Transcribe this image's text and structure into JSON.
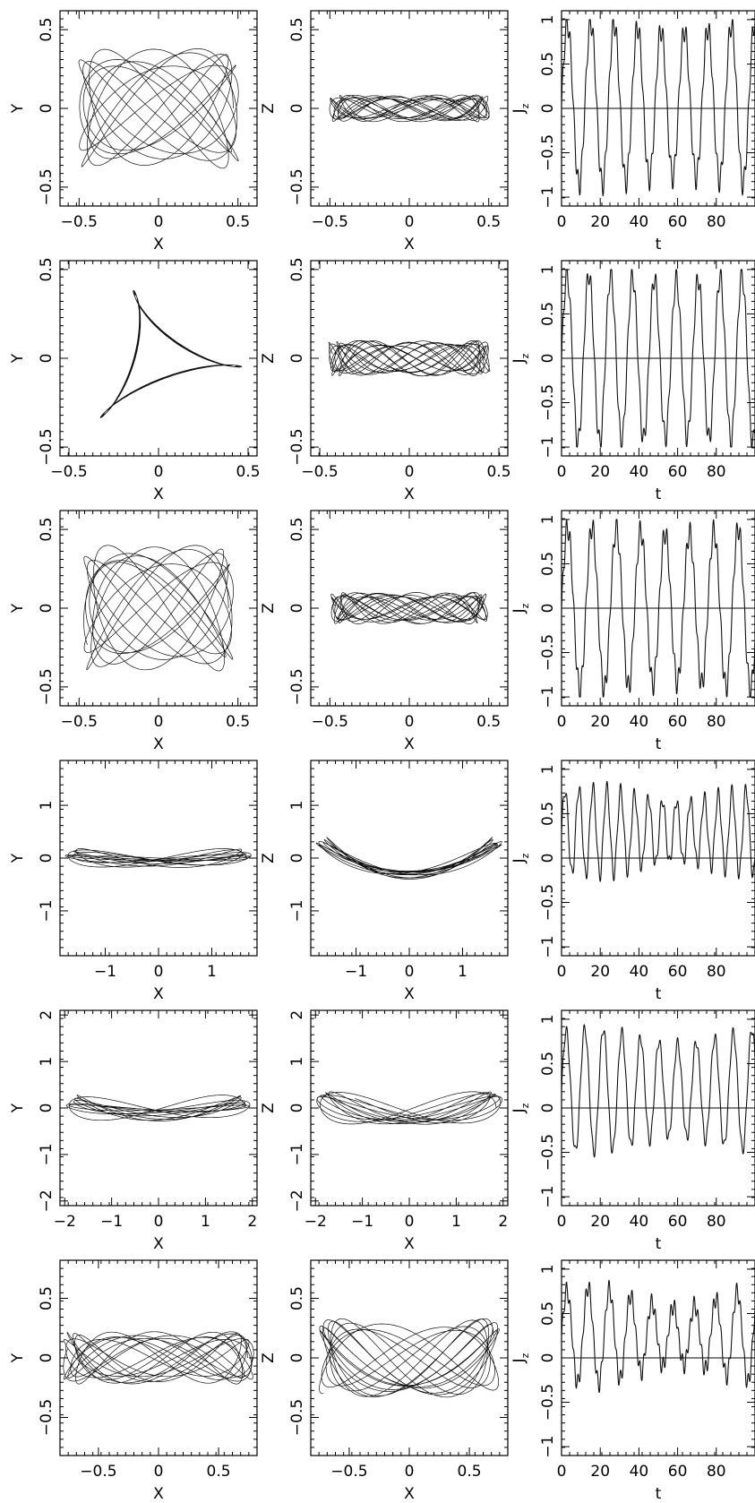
{
  "chart_data": [
    {
      "type": "line",
      "panel": "row1-xy",
      "xlabel": "X",
      "ylabel": "Y",
      "xlim": [
        -0.62,
        0.62
      ],
      "ylim": [
        -0.62,
        0.62
      ],
      "xticks": [
        -0.5,
        0,
        0.5
      ],
      "xtick_labels": [
        "−0.5",
        "0",
        "0.5"
      ],
      "yticks": [
        -0.5,
        0,
        0.5
      ],
      "ytick_labels": [
        "−0.5",
        "0",
        "0.5"
      ],
      "orbit": {
        "mode": "lissajous",
        "ax": 0.47,
        "ay": 0.38,
        "wx": 0.96,
        "wy": 1.44,
        "drift": 0.02,
        "tmax": 60
      }
    },
    {
      "type": "line",
      "panel": "row1-xz",
      "xlabel": "X",
      "ylabel": "Z",
      "xlim": [
        -0.62,
        0.62
      ],
      "ylim": [
        -0.62,
        0.62
      ],
      "xticks": [
        -0.5,
        0,
        0.5
      ],
      "xtick_labels": [
        "−0.5",
        "0",
        "0.5"
      ],
      "yticks": [
        -0.5,
        0,
        0.5
      ],
      "ytick_labels": [
        "−0.5",
        "0",
        "0.5"
      ],
      "orbit": {
        "mode": "lissajous",
        "ax": 0.47,
        "ay": 0.085,
        "wx": 0.96,
        "wy": 3.1,
        "drift": 0.03,
        "tmax": 60
      }
    },
    {
      "type": "line",
      "panel": "row1-jz",
      "xlabel": "t",
      "ylabel": "J",
      "ylabel_sub": "z",
      "xlim": [
        0,
        100
      ],
      "ylim": [
        -1.1,
        1.1
      ],
      "xticks": [
        0,
        20,
        40,
        60,
        80
      ],
      "xtick_labels": [
        "0",
        "20",
        "40",
        "60",
        "80"
      ],
      "yticks": [
        -1,
        -0.5,
        0,
        0.5,
        1
      ],
      "ytick_labels": [
        "−1",
        "−0.5",
        "0",
        "0.5",
        "1"
      ],
      "series_params": {
        "offset": 0.05,
        "amp": 0.92,
        "period": 12.1,
        "wiggle": 0.13,
        "wiggle_period": 2.0,
        "mod": 0.05
      }
    },
    {
      "type": "line",
      "panel": "row2-xy",
      "xlabel": "X",
      "ylabel": "Y",
      "xlim": [
        -0.55,
        0.55
      ],
      "ylim": [
        -0.55,
        0.55
      ],
      "xticks": [
        -0.5,
        0,
        0.5
      ],
      "xtick_labels": [
        "−0.5",
        "0",
        "0.5"
      ],
      "yticks": [
        -0.5,
        0,
        0.5
      ],
      "ytick_labels": [
        "−0.5",
        "0",
        "0.5"
      ],
      "orbit": {
        "mode": "trefoil",
        "ax": 0.44,
        "ay": 0.37,
        "wx": 1.0,
        "wy": 1.0,
        "drift": 0.006,
        "tmax": 70
      }
    },
    {
      "type": "line",
      "panel": "row2-xz",
      "xlabel": "X",
      "ylabel": "Z",
      "xlim": [
        -0.55,
        0.55
      ],
      "ylim": [
        -0.55,
        0.55
      ],
      "xticks": [
        -0.5,
        0,
        0.5
      ],
      "xtick_labels": [
        "−0.5",
        "0",
        "0.5"
      ],
      "yticks": [
        -0.5,
        0,
        0.5
      ],
      "ytick_labels": [
        "−0.5",
        "0",
        "0.5"
      ],
      "orbit": {
        "mode": "lissajous",
        "ax": 0.42,
        "ay": 0.1,
        "wx": 1.0,
        "wy": 3.3,
        "drift": 0.03,
        "tmax": 60
      }
    },
    {
      "type": "line",
      "panel": "row2-jz",
      "xlabel": "t",
      "ylabel": "J",
      "ylabel_sub": "z",
      "xlim": [
        0,
        100
      ],
      "ylim": [
        -1.1,
        1.1
      ],
      "xticks": [
        0,
        20,
        40,
        60,
        80
      ],
      "xtick_labels": [
        "0",
        "20",
        "40",
        "60",
        "80"
      ],
      "yticks": [
        -1,
        -0.5,
        0,
        0.5,
        1
      ],
      "ytick_labels": [
        "−1",
        "−0.5",
        "0",
        "0.5",
        "1"
      ],
      "series_params": {
        "offset": 0.0,
        "amp": 0.95,
        "period": 11.3,
        "wiggle": 0.12,
        "wiggle_period": 2.1,
        "mod": 0.03
      }
    },
    {
      "type": "line",
      "panel": "row3-xy",
      "xlabel": "X",
      "ylabel": "Y",
      "xlim": [
        -0.62,
        0.62
      ],
      "ylim": [
        -0.62,
        0.62
      ],
      "xticks": [
        -0.5,
        0,
        0.5
      ],
      "xtick_labels": [
        "−0.5",
        "0",
        "0.5"
      ],
      "yticks": [
        -0.5,
        0,
        0.5
      ],
      "ytick_labels": [
        "−0.5",
        "0",
        "0.5"
      ],
      "orbit": {
        "mode": "lissajous",
        "ax": 0.44,
        "ay": 0.4,
        "wx": 1.0,
        "wy": 1.5,
        "drift": 0.02,
        "tmax": 60
      }
    },
    {
      "type": "line",
      "panel": "row3-xz",
      "xlabel": "X",
      "ylabel": "Z",
      "xlim": [
        -0.62,
        0.62
      ],
      "ylim": [
        -0.62,
        0.62
      ],
      "xticks": [
        -0.5,
        0,
        0.5
      ],
      "xtick_labels": [
        "−0.5",
        "0",
        "0.5"
      ],
      "yticks": [
        -0.5,
        0,
        0.5
      ],
      "ytick_labels": [
        "−0.5",
        "0",
        "0.5"
      ],
      "orbit": {
        "mode": "lissajous",
        "ax": 0.46,
        "ay": 0.1,
        "wx": 1.0,
        "wy": 3.2,
        "drift": 0.03,
        "tmax": 60
      }
    },
    {
      "type": "line",
      "panel": "row3-jz",
      "xlabel": "t",
      "ylabel": "J",
      "ylabel_sub": "z",
      "xlim": [
        0,
        100
      ],
      "ylim": [
        -1.1,
        1.1
      ],
      "xticks": [
        0,
        20,
        40,
        60,
        80
      ],
      "xtick_labels": [
        "0",
        "20",
        "40",
        "60",
        "80"
      ],
      "yticks": [
        -1,
        -0.5,
        0,
        0.5,
        1
      ],
      "ytick_labels": [
        "−1",
        "−0.5",
        "0",
        "0.5",
        "1"
      ],
      "series_params": {
        "offset": 0.0,
        "amp": 0.92,
        "period": 12.6,
        "wiggle": 0.13,
        "wiggle_period": 2.0,
        "mod": 0.04
      }
    },
    {
      "type": "line",
      "panel": "row4-xy",
      "xlabel": "X",
      "ylabel": "Y",
      "xlim": [
        -1.85,
        1.85
      ],
      "ylim": [
        -1.85,
        1.85
      ],
      "xticks": [
        -1,
        0,
        1
      ],
      "xtick_labels": [
        "−1",
        "0",
        "1"
      ],
      "yticks": [
        -1,
        0,
        1
      ],
      "ytick_labels": [
        "−1",
        "0",
        "1"
      ],
      "orbit": {
        "mode": "banana",
        "ax": 1.65,
        "ay": 0.18,
        "wx": 1.0,
        "wy": 2.0,
        "bend": 0.0,
        "drift": 0.04,
        "tmax": 40
      }
    },
    {
      "type": "line",
      "panel": "row4-xz",
      "xlabel": "X",
      "ylabel": "Z",
      "xlim": [
        -1.85,
        1.85
      ],
      "ylim": [
        -1.85,
        1.85
      ],
      "xticks": [
        -1,
        0,
        1
      ],
      "xtick_labels": [
        "−1",
        "0",
        "1"
      ],
      "yticks": [
        -1,
        0,
        1
      ],
      "ytick_labels": [
        "−1",
        "0",
        "1"
      ],
      "orbit": {
        "mode": "banana",
        "ax": 1.65,
        "ay": 0.12,
        "wx": 1.0,
        "wy": 2.0,
        "bend": 0.28,
        "drift": 0.03,
        "tmax": 40
      }
    },
    {
      "type": "line",
      "panel": "row4-jz",
      "xlabel": "t",
      "ylabel": "J",
      "ylabel_sub": "z",
      "xlim": [
        0,
        100
      ],
      "ylim": [
        -1.1,
        1.1
      ],
      "xticks": [
        0,
        20,
        40,
        60,
        80
      ],
      "xtick_labels": [
        "0",
        "20",
        "40",
        "60",
        "80"
      ],
      "yticks": [
        -1,
        -0.5,
        0,
        0.5,
        1
      ],
      "ytick_labels": [
        "−1",
        "−0.5",
        "0",
        "0.5",
        "1"
      ],
      "series_params": {
        "offset": 0.3,
        "amp": 0.5,
        "period": 7.2,
        "wiggle": 0.08,
        "wiggle_period": 2.3,
        "mod": 0.15
      }
    },
    {
      "type": "line",
      "panel": "row5-xy",
      "xlabel": "X",
      "ylabel": "Y",
      "xlim": [
        -2.1,
        2.1
      ],
      "ylim": [
        -2.1,
        2.1
      ],
      "xticks": [
        -2,
        -1,
        0,
        1,
        2
      ],
      "xtick_labels": [
        "−2",
        "−1",
        "0",
        "1",
        "2"
      ],
      "yticks": [
        -2,
        -1,
        0,
        1,
        2
      ],
      "ytick_labels": [
        "−2",
        "−1",
        "0",
        "1",
        "2"
      ],
      "orbit": {
        "mode": "banana",
        "ax": 1.85,
        "ay": 0.28,
        "wx": 1.0,
        "wy": 2.0,
        "bend": 0.0,
        "drift": 0.03,
        "tmax": 40
      }
    },
    {
      "type": "line",
      "panel": "row5-xz",
      "xlabel": "X",
      "ylabel": "Z",
      "xlim": [
        -2.1,
        2.1
      ],
      "ylim": [
        -2.1,
        2.1
      ],
      "xticks": [
        -2,
        -1,
        0,
        1,
        2
      ],
      "xtick_labels": [
        "−2",
        "−1",
        "0",
        "1",
        "2"
      ],
      "yticks": [
        -2,
        -1,
        0,
        1,
        2
      ],
      "ytick_labels": [
        "−2",
        "−1",
        "0",
        "1",
        "2"
      ],
      "orbit": {
        "mode": "lissajous",
        "ax": 1.85,
        "ay": 0.35,
        "wx": 1.0,
        "wy": 2.0,
        "drift": 0.03,
        "tmax": 40
      }
    },
    {
      "type": "line",
      "panel": "row5-jz",
      "xlabel": "t",
      "ylabel": "J",
      "ylabel_sub": "z",
      "xlim": [
        0,
        100
      ],
      "ylim": [
        -1.1,
        1.1
      ],
      "xticks": [
        0,
        20,
        40,
        60,
        80
      ],
      "xtick_labels": [
        "0",
        "20",
        "40",
        "60",
        "80"
      ],
      "yticks": [
        -1,
        -0.5,
        0,
        0.5,
        1
      ],
      "ytick_labels": [
        "−1",
        "−0.5",
        "0",
        "0.5",
        "1"
      ],
      "series_params": {
        "offset": 0.2,
        "amp": 0.7,
        "period": 9.6,
        "wiggle": 0.06,
        "wiggle_period": 2.2,
        "mod": 0.12
      }
    },
    {
      "type": "line",
      "panel": "row6-xy",
      "xlabel": "X",
      "ylabel": "Y",
      "xlim": [
        -0.82,
        0.82
      ],
      "ylim": [
        -0.82,
        0.82
      ],
      "xticks": [
        -0.5,
        0,
        0.5
      ],
      "xtick_labels": [
        "−0.5",
        "0",
        "0.5"
      ],
      "yticks": [
        -0.5,
        0,
        0.5
      ],
      "ytick_labels": [
        "−0.5",
        "0",
        "0.5"
      ],
      "orbit": {
        "mode": "lissajous",
        "ax": 0.74,
        "ay": 0.22,
        "wx": 1.0,
        "wy": 2.4,
        "drift": 0.05,
        "tmax": 60
      }
    },
    {
      "type": "line",
      "panel": "row6-xz",
      "xlabel": "X",
      "ylabel": "Z",
      "xlim": [
        -0.82,
        0.82
      ],
      "ylim": [
        -0.82,
        0.82
      ],
      "xticks": [
        -0.5,
        0,
        0.5
      ],
      "xtick_labels": [
        "−0.5",
        "0",
        "0.5"
      ],
      "yticks": [
        -0.5,
        0,
        0.5
      ],
      "ytick_labels": [
        "−0.5",
        "0",
        "0.5"
      ],
      "orbit": {
        "mode": "lissajous",
        "ax": 0.7,
        "ay": 0.33,
        "wx": 1.0,
        "wy": 2.0,
        "phase": 0.6,
        "drift": 0.03,
        "tmax": 60
      }
    },
    {
      "type": "line",
      "panel": "row6-jz",
      "xlabel": "t",
      "ylabel": "J",
      "ylabel_sub": "z",
      "xlim": [
        0,
        100
      ],
      "ylim": [
        -1.1,
        1.1
      ],
      "xticks": [
        0,
        20,
        40,
        60,
        80
      ],
      "xtick_labels": [
        "0",
        "20",
        "40",
        "60",
        "80"
      ],
      "yticks": [
        -1,
        -0.5,
        0,
        0.5,
        1
      ],
      "ytick_labels": [
        "−1",
        "−0.5",
        "0",
        "0.5",
        "1"
      ],
      "series_params": {
        "offset": 0.25,
        "amp": 0.55,
        "period": 11.0,
        "wiggle": 0.1,
        "wiggle_period": 2.0,
        "mod": 0.2
      }
    }
  ]
}
